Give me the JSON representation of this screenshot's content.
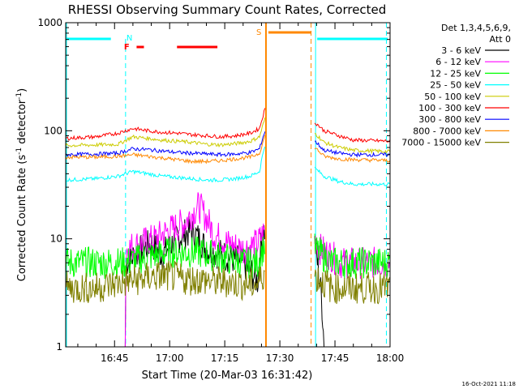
{
  "chart_data": {
    "type": "line",
    "title": "RHESSI Observing Summary Count Rates, Corrected",
    "xlabel": "Start Time (20-Mar-03 16:31:42)",
    "ylabel_main": "Corrected Count Rate (s",
    "ylabel_sup1": "-1",
    "ylabel_mid": " detector",
    "ylabel_sup2": "-1",
    "ylabel_end": ")",
    "yscale": "log",
    "ylim": [
      1,
      1000
    ],
    "xlim_minutes": [
      31.7,
      120.0
    ],
    "x_ticks": [
      {
        "minute": 45,
        "label": "16:45"
      },
      {
        "minute": 60,
        "label": "17:00"
      },
      {
        "minute": 75,
        "label": "17:15"
      },
      {
        "minute": 90,
        "label": "17:30"
      },
      {
        "minute": 105,
        "label": "17:45"
      },
      {
        "minute": 120,
        "label": "18:00"
      }
    ],
    "y_ticks": [
      {
        "value": 1,
        "label": "1"
      },
      {
        "value": 10,
        "label": "10"
      },
      {
        "value": 100,
        "label": "100"
      },
      {
        "value": 1000,
        "label": "1000"
      }
    ],
    "legend": {
      "header1": "Det 1,3,4,5,6,9,",
      "header2": "Att 0",
      "entries": [
        {
          "label": "3 - 6 keV",
          "color": "#000000"
        },
        {
          "label": "6 - 12 keV",
          "color": "#ff00ff"
        },
        {
          "label": "12 - 25 keV",
          "color": "#00ff00"
        },
        {
          "label": "25 - 50 keV",
          "color": "#00ffff"
        },
        {
          "label": "50 - 100 keV",
          "color": "#cccc00"
        },
        {
          "label": "100 - 300 keV",
          "color": "#ff0000"
        },
        {
          "label": "300 - 800 keV",
          "color": "#0000ff"
        },
        {
          "label": "800 - 7000 keV",
          "color": "#ff8800"
        },
        {
          "label": "7000 - 15000 keV",
          "color": "#808000"
        }
      ]
    },
    "segments": [
      [
        31.7,
        86.0
      ],
      [
        99.5,
        120.0
      ]
    ],
    "series": [
      {
        "name": "3 - 6 keV",
        "color": "#000000",
        "x": [
          31.7,
          48.0,
          48.1,
          55,
          58,
          62,
          66,
          70,
          75,
          80,
          84,
          85.5,
          99.5,
          100.5,
          102,
          104,
          110,
          120
        ],
        "y": [
          1,
          1,
          6,
          9,
          7,
          10,
          12,
          8,
          7,
          6,
          4,
          12,
          9,
          5,
          1,
          1,
          1,
          1
        ]
      },
      {
        "name": "6 - 12 keV",
        "color": "#ff00ff",
        "x": [
          31.7,
          48.0,
          48.1,
          52,
          56,
          60,
          64,
          68,
          72,
          76,
          80,
          84,
          86,
          99.5,
          101,
          104,
          106,
          110,
          120
        ],
        "y": [
          1,
          1,
          8,
          9,
          10,
          12,
          14,
          20,
          11,
          9,
          8,
          9,
          12,
          10,
          8,
          7,
          6,
          6,
          6
        ]
      },
      {
        "name": "12 - 25 keV",
        "color": "#00ff00",
        "x": [
          31.7,
          40,
          48,
          52,
          56,
          60,
          64,
          68,
          72,
          76,
          80,
          84,
          86,
          99.5,
          104,
          110,
          120
        ],
        "y": [
          6,
          6,
          6,
          6.5,
          7,
          7.5,
          7.5,
          7.5,
          7,
          6.5,
          6,
          6,
          9,
          8,
          6,
          6,
          6
        ]
      },
      {
        "name": "25 - 50 keV",
        "color": "#00ffff",
        "x": [
          31.7,
          40,
          46,
          50,
          54,
          58,
          62,
          66,
          70,
          74,
          78,
          82,
          84.5,
          86,
          99.5,
          102,
          106,
          110,
          120
        ],
        "y": [
          35,
          36,
          38,
          42,
          40,
          38,
          37,
          36,
          35,
          35,
          36,
          38,
          42,
          75,
          45,
          38,
          34,
          32,
          32
        ]
      },
      {
        "name": "50 - 100 keV",
        "color": "#cccc00",
        "x": [
          31.7,
          40,
          46,
          50,
          54,
          58,
          62,
          66,
          70,
          74,
          78,
          82,
          84.5,
          86,
          99.5,
          102,
          106,
          110,
          120
        ],
        "y": [
          73,
          74,
          75,
          88,
          85,
          82,
          80,
          78,
          75,
          74,
          76,
          80,
          88,
          130,
          95,
          78,
          70,
          66,
          64
        ]
      },
      {
        "name": "100 - 300 keV",
        "color": "#ff0000",
        "x": [
          31.7,
          40,
          46,
          50,
          54,
          58,
          62,
          66,
          70,
          74,
          78,
          82,
          84.5,
          86,
          99.5,
          102,
          106,
          110,
          120
        ],
        "y": [
          85,
          88,
          95,
          105,
          100,
          97,
          95,
          92,
          90,
          88,
          90,
          95,
          105,
          160,
          120,
          100,
          90,
          82,
          80
        ]
      },
      {
        "name": "300 - 800 keV",
        "color": "#0000ff",
        "x": [
          31.7,
          40,
          46,
          50,
          54,
          58,
          62,
          66,
          70,
          74,
          78,
          82,
          84.5,
          86,
          99.5,
          102,
          106,
          110,
          120
        ],
        "y": [
          60,
          61,
          62,
          68,
          67,
          65,
          63,
          62,
          61,
          60,
          61,
          63,
          68,
          100,
          80,
          66,
          62,
          60,
          60
        ]
      },
      {
        "name": "800 - 7000 keV",
        "color": "#ff8800",
        "x": [
          31.7,
          40,
          46,
          50,
          54,
          58,
          62,
          66,
          70,
          74,
          78,
          82,
          84.5,
          86,
          99.5,
          102,
          106,
          110,
          120
        ],
        "y": [
          57,
          57,
          58,
          60,
          58,
          56,
          54,
          52,
          52,
          53,
          55,
          57,
          62,
          90,
          70,
          58,
          55,
          54,
          53
        ]
      },
      {
        "name": "7000 - 15000 keV",
        "color": "#808000",
        "x": [
          31.7,
          40,
          48,
          52,
          56,
          60,
          64,
          68,
          72,
          76,
          80,
          84,
          86,
          99.5,
          104,
          110,
          120
        ],
        "y": [
          3.5,
          3.5,
          4,
          4.2,
          4.5,
          4.5,
          4.2,
          4.2,
          4,
          4,
          3.8,
          3.8,
          5,
          4.5,
          3.5,
          3.5,
          3.5
        ]
      }
    ],
    "flags": {
      "N_label": "N",
      "F_label": "F",
      "S_label": "S",
      "night_color": "#00ffff",
      "flare_color": "#ff0000",
      "saa_color": "#ff8800"
    },
    "footer_date": "16-Oct-2021 11:18"
  }
}
